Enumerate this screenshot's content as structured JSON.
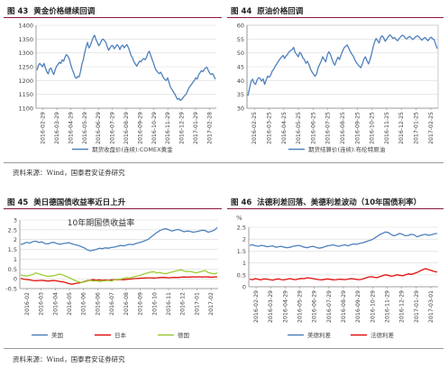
{
  "sections": {
    "f43": {
      "num": "图 43",
      "title": "黄金价格继续回调"
    },
    "f44": {
      "num": "图 44",
      "title": "原油价格回调"
    },
    "f45": {
      "num": "图 45",
      "title": "美日德国债收益率近日上升"
    },
    "f46": {
      "num": "图 46",
      "title": "法德利差回落、美德利差波动（10年国债利率）"
    }
  },
  "source_top": "资料来源：Wind，国泰君安证券研究",
  "source_bottom": "资料来源：Wind，国泰君安证券研究",
  "colors": {
    "blue": "#4f81bd",
    "red": "#e0100c",
    "green": "#9acd32",
    "axis": "#888888",
    "grid": "#d9d9d9",
    "rule": "#8a1a3a"
  },
  "chart_data": [
    {
      "id": "f43",
      "type": "line",
      "title": "",
      "ylim": [
        1100,
        1400
      ],
      "yticks": [
        1100,
        1150,
        1200,
        1250,
        1300,
        1350,
        1400
      ],
      "xticks": [
        "2016-02-29",
        "2016-03-29",
        "2016-04-29",
        "2016-05-29",
        "2016-06-29",
        "2016-07-29",
        "2016-08-29",
        "2016-09-29",
        "2016-10-29",
        "2016-11-29",
        "2016-12-29",
        "2017-01-29",
        "2017-02-28"
      ],
      "series": [
        {
          "name": "期货收盘价(连续):COMEX黄金",
          "color": "#4f81bd",
          "values": [
            1238,
            1255,
            1262,
            1256,
            1250,
            1262,
            1245,
            1232,
            1224,
            1242,
            1245,
            1232,
            1222,
            1240,
            1252,
            1258,
            1266,
            1262,
            1275,
            1270,
            1285,
            1294,
            1288,
            1278,
            1258,
            1242,
            1230,
            1214,
            1208,
            1215,
            1213,
            1232,
            1260,
            1275,
            1302,
            1322,
            1338,
            1318,
            1326,
            1342,
            1356,
            1364,
            1348,
            1338,
            1326,
            1334,
            1346,
            1350,
            1345,
            1338,
            1322,
            1310,
            1318,
            1326,
            1326,
            1315,
            1322,
            1330,
            1324,
            1312,
            1324,
            1328,
            1318,
            1325,
            1330,
            1320,
            1306,
            1290,
            1282,
            1268,
            1260,
            1252,
            1262,
            1270,
            1268,
            1275,
            1280,
            1275,
            1285,
            1300,
            1306,
            1290,
            1276,
            1262,
            1245,
            1236,
            1230,
            1225,
            1230,
            1222,
            1210,
            1204,
            1200,
            1210,
            1192,
            1176,
            1168,
            1160,
            1152,
            1142,
            1132,
            1136,
            1128,
            1132,
            1138,
            1145,
            1150,
            1160,
            1172,
            1180,
            1186,
            1195,
            1200,
            1210,
            1205,
            1220,
            1228,
            1236,
            1232,
            1240,
            1246,
            1248,
            1236,
            1226,
            1222,
            1225,
            1215,
            1205
          ]
        }
      ]
    },
    {
      "id": "f44",
      "type": "line",
      "title": "",
      "ylim": [
        30,
        60
      ],
      "yticks": [
        30,
        35,
        40,
        45,
        50,
        55,
        60
      ],
      "xticks": [
        "2016-02-25",
        "2016-03-25",
        "2016-04-25",
        "2016-05-25",
        "2016-06-25",
        "2016-07-25",
        "2016-08-25",
        "2016-09-25",
        "2016-10-25",
        "2016-11-25",
        "2016-12-25",
        "2017-01-25",
        "2017-02-25"
      ],
      "series": [
        {
          "name": "期货结算价(连续):布伦特原油",
          "color": "#4f81bd",
          "values": [
            34.5,
            37.0,
            39.6,
            40.5,
            39.2,
            38.6,
            40.2,
            41.0,
            40.8,
            39.8,
            40.6,
            38.6,
            40.2,
            41.6,
            41.2,
            42.1,
            43.5,
            44.2,
            45.3,
            46.1,
            47.0,
            47.8,
            48.5,
            49.1,
            48.0,
            48.8,
            49.5,
            50.4,
            50.8,
            51.2,
            52.0,
            50.1,
            49.4,
            48.6,
            50.2,
            49.6,
            48.2,
            47.6,
            46.2,
            47.0,
            45.8,
            44.2,
            43.1,
            42.4,
            41.5,
            42.4,
            44.6,
            45.8,
            47.0,
            48.6,
            47.6,
            46.8,
            49.2,
            50.4,
            49.5,
            48.0,
            46.4,
            45.6,
            47.2,
            48.5,
            47.6,
            49.2,
            50.6,
            51.8,
            52.4,
            52.9,
            51.8,
            50.6,
            49.6,
            48.8,
            47.6,
            46.6,
            45.8,
            45.2,
            44.6,
            46.0,
            47.8,
            48.6,
            47.2,
            46.0,
            47.5,
            49.6,
            52.0,
            54.0,
            55.2,
            54.4,
            53.6,
            55.6,
            56.2,
            55.4,
            54.2,
            55.0,
            55.9,
            56.5,
            56.0,
            55.2,
            55.6,
            54.9,
            54.4,
            55.1,
            55.8,
            56.4,
            56.2,
            55.5,
            55.0,
            55.6,
            56.0,
            55.4,
            54.8,
            55.3,
            55.9,
            56.2,
            55.8,
            55.1,
            54.6,
            55.2,
            55.6,
            55.0,
            54.4,
            55.2,
            55.7,
            55.1,
            54.8,
            53.2,
            51.6
          ]
        }
      ]
    },
    {
      "id": "f45",
      "type": "line",
      "title": "10年期国债收益率",
      "ylim": [
        -0.5,
        3
      ],
      "yticks": [
        -0.5,
        0,
        0.5,
        1,
        1.5,
        2,
        2.5,
        3
      ],
      "xticks": [
        "2016-02",
        "2016-03",
        "2016-04",
        "2016-05",
        "2016-06",
        "2016-06",
        "2016-07",
        "2016-08",
        "2016-09",
        "2016-10",
        "2016-11",
        "2016-12",
        "2017-01",
        "2017-02"
      ],
      "legend": "bottom",
      "series": [
        {
          "name": "美国",
          "color": "#4f81bd",
          "values": [
            1.75,
            1.8,
            1.86,
            1.82,
            1.9,
            1.92,
            1.86,
            1.88,
            1.8,
            1.78,
            1.84,
            1.86,
            1.8,
            1.76,
            1.8,
            1.82,
            1.84,
            1.78,
            1.74,
            1.7,
            1.64,
            1.58,
            1.48,
            1.42,
            1.46,
            1.5,
            1.56,
            1.54,
            1.58,
            1.56,
            1.6,
            1.62,
            1.66,
            1.7,
            1.68,
            1.72,
            1.76,
            1.74,
            1.8,
            1.84,
            1.88,
            1.94,
            2.0,
            2.12,
            2.24,
            2.36,
            2.46,
            2.52,
            2.56,
            2.5,
            2.44,
            2.48,
            2.52,
            2.46,
            2.4,
            2.44,
            2.42,
            2.38,
            2.4,
            2.44,
            2.48,
            2.46,
            2.38,
            2.42,
            2.48,
            2.62
          ]
        },
        {
          "name": "日本",
          "color": "#e0100c",
          "values": [
            0.02,
            -0.02,
            -0.04,
            -0.06,
            -0.09,
            -0.1,
            -0.09,
            -0.08,
            -0.1,
            -0.12,
            -0.1,
            -0.09,
            -0.11,
            -0.14,
            -0.16,
            -0.2,
            -0.25,
            -0.28,
            -0.24,
            -0.22,
            -0.19,
            -0.14,
            -0.1,
            -0.07,
            -0.05,
            -0.07,
            -0.06,
            -0.08,
            -0.06,
            -0.07,
            -0.06,
            -0.05,
            -0.06,
            -0.04,
            -0.05,
            -0.03,
            -0.02,
            0.0,
            0.01,
            0.02,
            0.03,
            0.04,
            0.05,
            0.05,
            0.04,
            0.05,
            0.06,
            0.07,
            0.06,
            0.05,
            0.06,
            0.07,
            0.06,
            0.08,
            0.09,
            0.08,
            0.09,
            0.1,
            0.09,
            0.1,
            0.09,
            0.1,
            0.09,
            0.08,
            0.09,
            0.1
          ]
        },
        {
          "name": "德国",
          "color": "#9acd32",
          "values": [
            0.2,
            0.16,
            0.14,
            0.18,
            0.22,
            0.3,
            0.25,
            0.2,
            0.16,
            0.12,
            0.14,
            0.16,
            0.2,
            0.24,
            0.18,
            0.12,
            0.06,
            -0.02,
            -0.1,
            -0.14,
            -0.2,
            -0.16,
            -0.12,
            -0.08,
            -0.12,
            -0.1,
            -0.14,
            -0.12,
            -0.1,
            -0.08,
            -0.12,
            -0.06,
            -0.04,
            -0.02,
            0.02,
            0.06,
            0.04,
            0.08,
            0.12,
            0.16,
            0.2,
            0.26,
            0.3,
            0.34,
            0.36,
            0.3,
            0.32,
            0.28,
            0.26,
            0.3,
            0.34,
            0.38,
            0.42,
            0.46,
            0.4,
            0.36,
            0.38,
            0.34,
            0.3,
            0.34,
            0.38,
            0.42,
            0.32,
            0.28,
            0.24,
            0.3
          ]
        }
      ]
    },
    {
      "id": "f46",
      "type": "line",
      "title": "",
      "ylabel": "%",
      "ylim": [
        0,
        2.5
      ],
      "yticks": [
        0,
        0.5,
        1,
        1.5,
        2,
        2.5
      ],
      "xticks": [
        "2016-02-29",
        "2016-03-29",
        "2016-04-29",
        "2016-05-29",
        "2016-06-29",
        "2016-07-29",
        "2016-08-29",
        "2016-09-29",
        "2016-10-29",
        "2016-11-29",
        "2016-12-29",
        "2017-01-29",
        "2017-03-01"
      ],
      "legend": "bottom",
      "series": [
        {
          "name": "美德利差",
          "color": "#4f81bd",
          "values": [
            1.74,
            1.76,
            1.72,
            1.7,
            1.74,
            1.72,
            1.68,
            1.7,
            1.72,
            1.66,
            1.68,
            1.7,
            1.66,
            1.64,
            1.66,
            1.7,
            1.72,
            1.74,
            1.7,
            1.66,
            1.64,
            1.68,
            1.7,
            1.66,
            1.62,
            1.64,
            1.68,
            1.72,
            1.74,
            1.76,
            1.72,
            1.7,
            1.74,
            1.76,
            1.72,
            1.76,
            1.8,
            1.78,
            1.82,
            1.84,
            1.88,
            1.92,
            1.96,
            2.02,
            2.1,
            2.18,
            2.24,
            2.3,
            2.28,
            2.2,
            2.14,
            2.18,
            2.24,
            2.2,
            2.14,
            2.16,
            2.2,
            2.18,
            2.1,
            2.14,
            2.18,
            2.2,
            2.16,
            2.18,
            2.22,
            2.24
          ]
        },
        {
          "name": "法德利差",
          "color": "#e0100c",
          "values": [
            0.32,
            0.3,
            0.34,
            0.31,
            0.29,
            0.33,
            0.32,
            0.3,
            0.28,
            0.31,
            0.33,
            0.3,
            0.29,
            0.32,
            0.34,
            0.31,
            0.3,
            0.33,
            0.35,
            0.34,
            0.38,
            0.36,
            0.34,
            0.32,
            0.3,
            0.29,
            0.31,
            0.33,
            0.31,
            0.29,
            0.3,
            0.32,
            0.31,
            0.3,
            0.32,
            0.34,
            0.33,
            0.31,
            0.3,
            0.32,
            0.36,
            0.4,
            0.42,
            0.4,
            0.38,
            0.42,
            0.46,
            0.5,
            0.48,
            0.44,
            0.46,
            0.5,
            0.48,
            0.46,
            0.5,
            0.54,
            0.52,
            0.56,
            0.6,
            0.66,
            0.72,
            0.76,
            0.72,
            0.68,
            0.64,
            0.62
          ]
        }
      ]
    }
  ]
}
